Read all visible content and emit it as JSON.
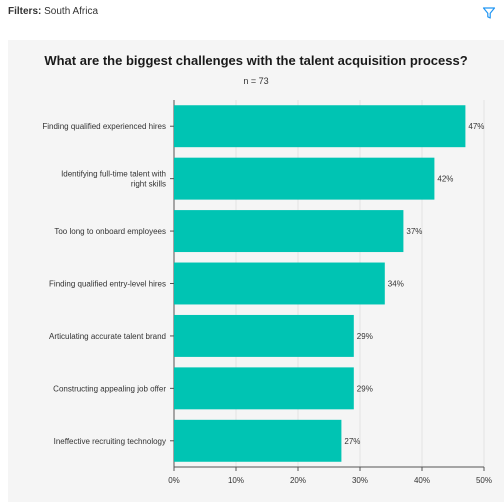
{
  "filters": {
    "label": "Filters:",
    "value": "South Africa",
    "icon": "filter-icon"
  },
  "colors": {
    "bar": "#00c4b3",
    "accent": "#2196f3"
  },
  "chart_data": {
    "type": "bar",
    "orientation": "horizontal",
    "title": "What are the biggest challenges with the talent acquisition process?",
    "subtitle": "n = 73",
    "categories": [
      [
        "Finding qualified experienced hires"
      ],
      [
        "Identifying full-time talent with",
        "right skills"
      ],
      [
        "Too long to onboard employees"
      ],
      [
        "Finding qualified entry-level hires"
      ],
      [
        "Articulating accurate talent brand"
      ],
      [
        "Constructing appealing job offer"
      ],
      [
        "Ineffective recruiting technology"
      ]
    ],
    "values": [
      47,
      42,
      37,
      34,
      29,
      29,
      27
    ],
    "value_labels": [
      "47%",
      "42%",
      "37%",
      "34%",
      "29%",
      "29%",
      "27%"
    ],
    "xlim": [
      0,
      50
    ],
    "xticks": [
      "0%",
      "10%",
      "20%",
      "30%",
      "40%",
      "50%"
    ],
    "grid": true
  }
}
